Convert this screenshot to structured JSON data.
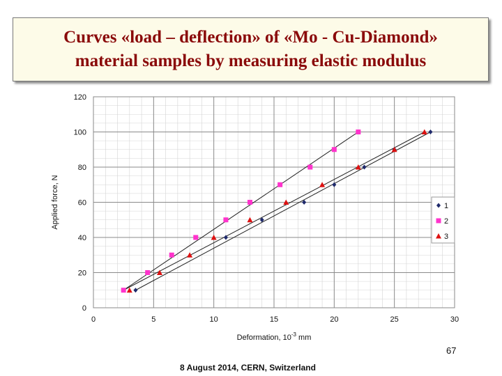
{
  "slide": {
    "title_line1": "Curves «load – deflection» of «Mo - Cu-Diamond»",
    "title_line2": "material samples by measuring elastic modulus",
    "page_number": "67",
    "footer": "8 August 2014, CERN, Switzerland",
    "title_color": "#8a0a0a"
  },
  "chart_data": {
    "type": "scatter",
    "title": "",
    "xlabel": "Deformation, 10",
    "xlabel_sup": "-3",
    "xlabel_unit": " mm",
    "ylabel": "Applied force, N",
    "xlim": [
      0,
      30
    ],
    "ylim": [
      0,
      120
    ],
    "xticks": [
      0,
      5,
      10,
      15,
      20,
      25,
      30
    ],
    "yticks": [
      0,
      20,
      40,
      60,
      80,
      100,
      120
    ],
    "grid": true,
    "legend_position": "right",
    "series": [
      {
        "name": "1",
        "color": "#1f2a6b",
        "marker": "diamond",
        "x": [
          3.5,
          11,
          14,
          17.5,
          20,
          22.5,
          25,
          28
        ],
        "y": [
          10,
          40,
          50,
          60,
          70,
          80,
          90,
          100
        ]
      },
      {
        "name": "2",
        "color": "#ff33cc",
        "marker": "square",
        "x": [
          2.5,
          4.5,
          6.5,
          8.5,
          11,
          13,
          15.5,
          18,
          20,
          22
        ],
        "y": [
          10,
          20,
          30,
          40,
          50,
          60,
          70,
          80,
          90,
          100
        ]
      },
      {
        "name": "3",
        "color": "#dd1111",
        "marker": "triangle",
        "x": [
          3,
          5.5,
          8,
          10,
          13,
          16,
          19,
          22,
          25,
          27.5
        ],
        "y": [
          10,
          20,
          30,
          40,
          50,
          60,
          70,
          80,
          90,
          100
        ]
      }
    ],
    "trend_lines": [
      {
        "series": "1",
        "x": [
          3.5,
          28
        ],
        "y": [
          10,
          100
        ]
      },
      {
        "series": "2",
        "x": [
          2.5,
          22
        ],
        "y": [
          10,
          100
        ]
      },
      {
        "series": "3",
        "x": [
          2.5,
          27.5
        ],
        "y": [
          10,
          100
        ]
      }
    ]
  }
}
